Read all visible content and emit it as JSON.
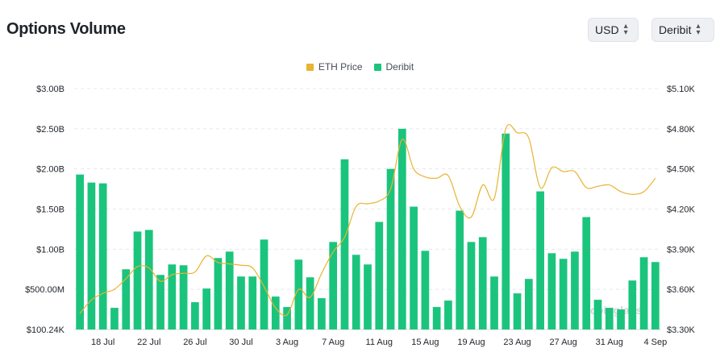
{
  "header": {
    "title": "Options Volume"
  },
  "controls": {
    "currency": "USD",
    "exchange": "Deribit"
  },
  "legend": {
    "price_label": "ETH Price",
    "volume_label": "Deribit"
  },
  "watermark": "coinglass",
  "colors": {
    "bar": "#1bc47d",
    "line": "#e8b431",
    "grid": "#e6e8eb"
  },
  "chart_data": {
    "type": "bar",
    "title": "Options Volume",
    "x_tick_labels": [
      "18 Jul",
      "22 Jul",
      "26 Jul",
      "30 Jul",
      "3 Aug",
      "7 Aug",
      "11 Aug",
      "15 Aug",
      "19 Aug",
      "23 Aug",
      "27 Aug",
      "31 Aug",
      "4 Sep"
    ],
    "y_left_ticks": [
      "$100.24K",
      "$500.00M",
      "$1.00B",
      "$1.50B",
      "$2.00B",
      "$2.50B",
      "$3.00B"
    ],
    "y_left_lim": [
      0.0001,
      3.0
    ],
    "y_left_unit": "B",
    "y_right_ticks": [
      "$3.30K",
      "$3.60K",
      "$3.90K",
      "$4.20K",
      "$4.50K",
      "$4.80K",
      "$5.10K"
    ],
    "y_right_lim": [
      3.3,
      5.1
    ],
    "y_right_unit": "K",
    "grid": true,
    "legend_position": "top",
    "categories": [
      "16 Jul",
      "17 Jul",
      "18 Jul",
      "19 Jul",
      "20 Jul",
      "21 Jul",
      "22 Jul",
      "23 Jul",
      "24 Jul",
      "25 Jul",
      "26 Jul",
      "27 Jul",
      "28 Jul",
      "29 Jul",
      "30 Jul",
      "31 Jul",
      "1 Aug",
      "2 Aug",
      "3 Aug",
      "4 Aug",
      "5 Aug",
      "6 Aug",
      "7 Aug",
      "8 Aug",
      "9 Aug",
      "10 Aug",
      "11 Aug",
      "12 Aug",
      "13 Aug",
      "14 Aug",
      "15 Aug",
      "16 Aug",
      "17 Aug",
      "18 Aug",
      "19 Aug",
      "20 Aug",
      "21 Aug",
      "22 Aug",
      "23 Aug",
      "24 Aug",
      "25 Aug",
      "26 Aug",
      "27 Aug",
      "28 Aug",
      "29 Aug",
      "30 Aug",
      "31 Aug",
      "1 Sep",
      "2 Sep",
      "3 Sep",
      "4 Sep"
    ],
    "series": [
      {
        "name": "Deribit",
        "type": "bar",
        "axis": "left",
        "values": [
          1.93,
          1.83,
          1.82,
          0.27,
          0.75,
          1.22,
          1.24,
          0.68,
          0.81,
          0.8,
          0.34,
          0.51,
          0.89,
          0.97,
          0.66,
          0.66,
          1.12,
          0.41,
          0.28,
          0.87,
          0.65,
          0.39,
          1.09,
          2.12,
          0.93,
          0.81,
          1.34,
          2.0,
          2.5,
          1.53,
          0.98,
          0.28,
          0.36,
          1.48,
          1.09,
          1.15,
          0.66,
          2.44,
          0.45,
          0.63,
          1.72,
          0.95,
          0.88,
          0.97,
          1.4,
          0.37,
          0.27,
          0.25,
          0.61,
          0.9,
          0.84
        ]
      },
      {
        "name": "ETH Price",
        "type": "line",
        "axis": "right",
        "values": [
          3.42,
          3.52,
          3.57,
          3.6,
          3.68,
          3.77,
          3.76,
          3.66,
          3.71,
          3.72,
          3.73,
          3.85,
          3.8,
          3.79,
          3.78,
          3.76,
          3.62,
          3.46,
          3.41,
          3.6,
          3.54,
          3.72,
          3.88,
          3.99,
          4.22,
          4.24,
          4.26,
          4.35,
          4.72,
          4.5,
          4.44,
          4.43,
          4.45,
          4.22,
          4.14,
          4.38,
          4.28,
          4.8,
          4.77,
          4.73,
          4.36,
          4.51,
          4.48,
          4.48,
          4.36,
          4.37,
          4.38,
          4.33,
          4.31,
          4.33,
          4.43
        ]
      }
    ]
  }
}
